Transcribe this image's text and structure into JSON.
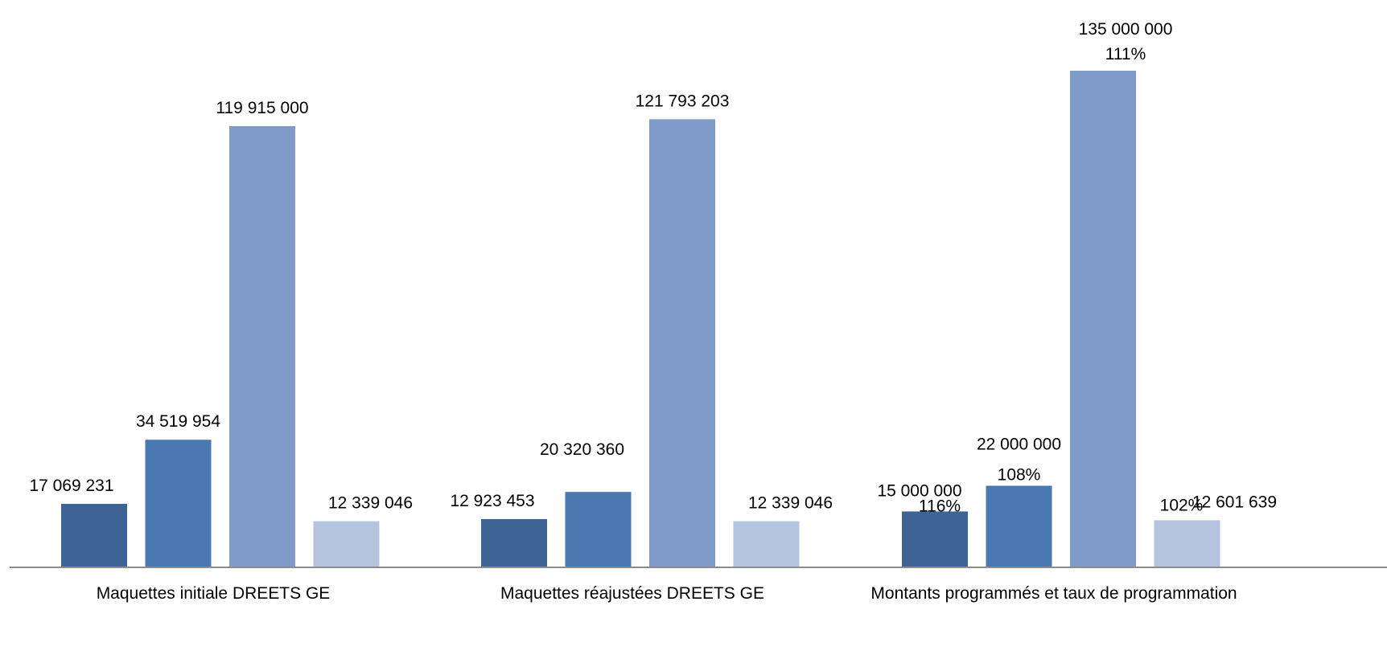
{
  "chart_data": {
    "type": "bar",
    "title": "",
    "xlabel": "",
    "ylabel": "",
    "ylim": [
      0,
      140000000
    ],
    "grid": false,
    "legend": "none",
    "categories": [
      "Maquettes initiale DREETS GE",
      "Maquettes réajustées DREETS GE",
      "Montants programmés et taux de programmation"
    ],
    "series": [
      {
        "color": "#3D6495",
        "values": [
          17069231,
          12923453,
          15000000
        ],
        "value_labels": [
          "17 069 231",
          "12 923 453",
          "15 000 000"
        ],
        "rate_labels": [
          "",
          "",
          "116%"
        ]
      },
      {
        "color": "#4A78B0",
        "values": [
          34519954,
          20320360,
          22000000
        ],
        "value_labels": [
          "34 519 954",
          "20 320 360",
          "22 000 000"
        ],
        "rate_labels": [
          "",
          "",
          "108%"
        ]
      },
      {
        "color": "#7F9CC8",
        "values": [
          119915000,
          121793203,
          135000000
        ],
        "value_labels": [
          "119 915 000",
          "121 793 203",
          "135 000 000"
        ],
        "rate_labels": [
          "",
          "",
          "111%"
        ]
      },
      {
        "color": "#B4C4DF",
        "values": [
          12339046,
          12339046,
          12601639
        ],
        "value_labels": [
          "12 339 046",
          "12 339 046",
          "12 601 639"
        ],
        "rate_labels": [
          "",
          "",
          "102%"
        ]
      }
    ],
    "axis_color": "#8C8C8C"
  }
}
